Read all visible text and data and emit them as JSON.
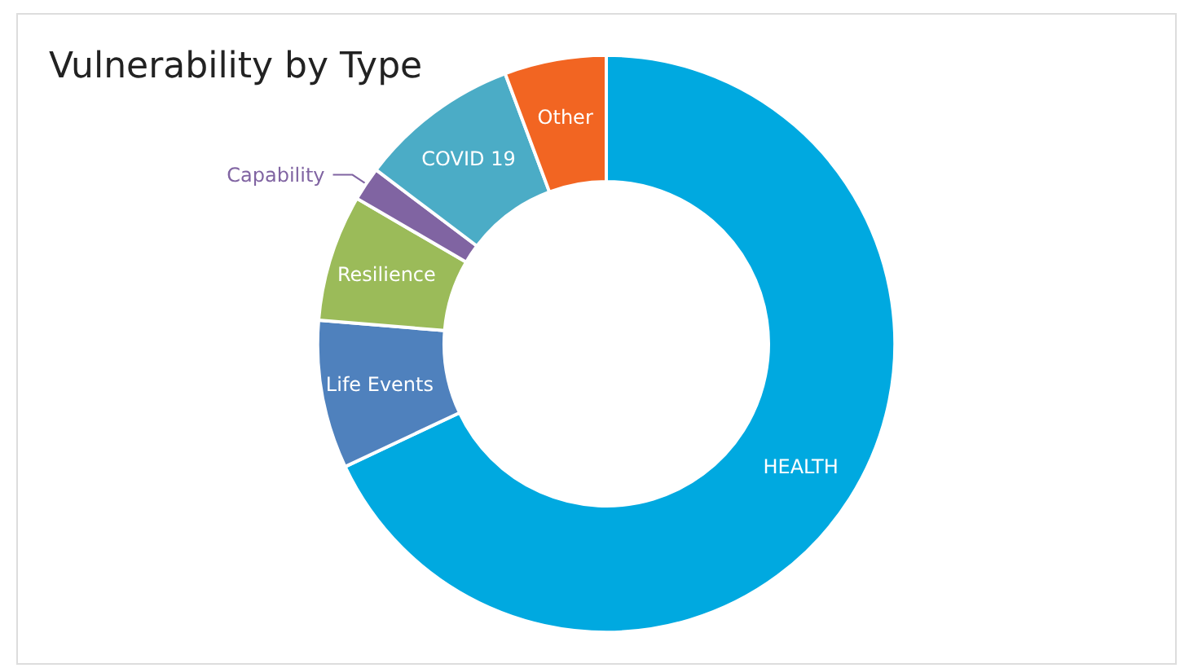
{
  "chart_data": {
    "type": "donut",
    "title": "Vulnerability by Type",
    "categories": [
      "HEALTH",
      "Life Events",
      "Resilience",
      "Capability",
      "COVID 19",
      "Other"
    ],
    "values": [
      68,
      8.3,
      7.1,
      1.9,
      9,
      5.7
    ],
    "colors": [
      "#00a9e0",
      "#4f81bd",
      "#9bbb59",
      "#8064a2",
      "#4bacc6",
      "#f26522"
    ],
    "legend": false
  }
}
